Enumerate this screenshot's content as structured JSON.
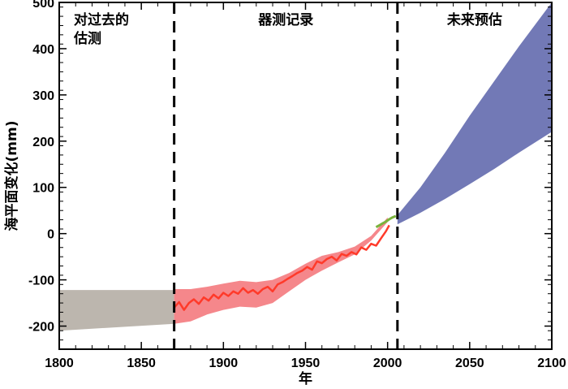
{
  "chart_data": {
    "type": "area",
    "title": "",
    "xlabel": "年",
    "ylabel": "海平面变化(mm)",
    "xlim": [
      1800,
      2100
    ],
    "ylim": [
      -250,
      500
    ],
    "x_ticks": [
      1800,
      1850,
      1900,
      1950,
      2000,
      2050,
      2100
    ],
    "y_ticks": [
      -200,
      -100,
      0,
      100,
      200,
      300,
      400,
      500
    ],
    "dividers": [
      1870,
      2006
    ],
    "periods": [
      {
        "label_lines": [
          "对过去的",
          "估测"
        ],
        "x_range": [
          1800,
          1870
        ]
      },
      {
        "label_lines": [
          "器测记录"
        ],
        "x_range": [
          1870,
          2006
        ]
      },
      {
        "label_lines": [
          "未来预估"
        ],
        "x_range": [
          2006,
          2100
        ]
      }
    ],
    "series": [
      {
        "name": "past-estimate-band",
        "kind": "band",
        "color": "#bcb6ae",
        "x": [
          1800,
          1870
        ],
        "upper": [
          -122,
          -122
        ],
        "lower": [
          -210,
          -195
        ]
      },
      {
        "name": "tide-gauge-uncertainty-band",
        "kind": "band",
        "color": "#f5878b",
        "x": [
          1870,
          1880,
          1890,
          1900,
          1910,
          1920,
          1930,
          1940,
          1950,
          1960,
          1970,
          1980,
          1990,
          2000
        ],
        "upper": [
          -120,
          -120,
          -115,
          -108,
          -102,
          -105,
          -100,
          -85,
          -65,
          -48,
          -40,
          -28,
          -5,
          35
        ],
        "lower": [
          -195,
          -190,
          -175,
          -165,
          -158,
          -160,
          -150,
          -125,
          -100,
          -80,
          -62,
          -45,
          -15,
          25
        ]
      },
      {
        "name": "tide-gauge-record",
        "kind": "line",
        "color": "#ff3a2a",
        "x": [
          1870,
          1873,
          1876,
          1879,
          1882,
          1885,
          1888,
          1891,
          1894,
          1897,
          1900,
          1903,
          1906,
          1909,
          1912,
          1915,
          1918,
          1921,
          1924,
          1927,
          1930,
          1933,
          1936,
          1939,
          1942,
          1945,
          1948,
          1951,
          1954,
          1957,
          1960,
          1963,
          1966,
          1969,
          1972,
          1975,
          1978,
          1981,
          1984,
          1987,
          1990,
          1993,
          1996,
          1999,
          2001
        ],
        "values": [
          -160,
          -148,
          -165,
          -150,
          -142,
          -152,
          -138,
          -145,
          -132,
          -140,
          -128,
          -135,
          -125,
          -130,
          -118,
          -128,
          -122,
          -130,
          -120,
          -115,
          -125,
          -110,
          -105,
          -98,
          -92,
          -85,
          -80,
          -72,
          -78,
          -60,
          -64,
          -55,
          -50,
          -58,
          -44,
          -48,
          -40,
          -45,
          -30,
          -35,
          -22,
          -26,
          -10,
          5,
          18
        ]
      },
      {
        "name": "satellite-altimetry",
        "kind": "line",
        "color": "#7ab33c",
        "x": [
          1993,
          1995,
          1997,
          1999,
          2001,
          2003,
          2005
        ],
        "values": [
          14,
          18,
          22,
          26,
          31,
          35,
          38
        ]
      },
      {
        "name": "future-projection-band",
        "kind": "band",
        "color": "#7279b6",
        "x": [
          2006,
          2020,
          2035,
          2050,
          2065,
          2080,
          2100
        ],
        "upper": [
          40,
          100,
          175,
          255,
          330,
          405,
          500
        ],
        "lower": [
          20,
          45,
          75,
          107,
          140,
          175,
          220
        ]
      }
    ]
  }
}
